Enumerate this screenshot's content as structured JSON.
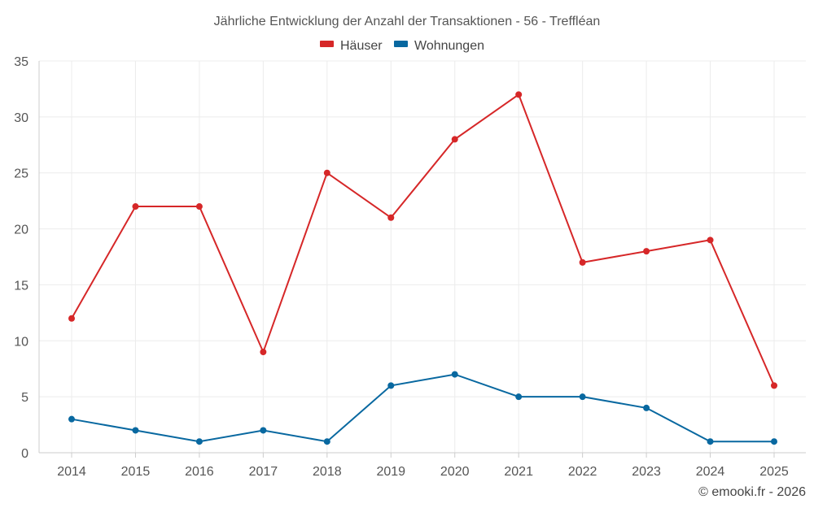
{
  "chart_data": {
    "type": "line",
    "title": "Jährliche Entwicklung der Anzahl der Transaktionen - 56 - Treffléan",
    "categories": [
      "2014",
      "2015",
      "2016",
      "2017",
      "2018",
      "2019",
      "2020",
      "2021",
      "2022",
      "2023",
      "2024",
      "2025"
    ],
    "series": [
      {
        "name": "Häuser",
        "color": "#d62728",
        "values": [
          12,
          22,
          22,
          9,
          25,
          21,
          28,
          32,
          17,
          18,
          19,
          6
        ]
      },
      {
        "name": "Wohnungen",
        "color": "#0868a0",
        "values": [
          3,
          2,
          1,
          2,
          1,
          6,
          7,
          5,
          5,
          4,
          1,
          1
        ]
      }
    ],
    "ylim": [
      0,
      35
    ],
    "yticks": [
      "0",
      "5",
      "10",
      "15",
      "20",
      "25",
      "30",
      "35"
    ],
    "xlabel": "",
    "ylabel": "",
    "grid": true,
    "legend_position": "top-center"
  },
  "credit": "© emooki.fr - 2026"
}
